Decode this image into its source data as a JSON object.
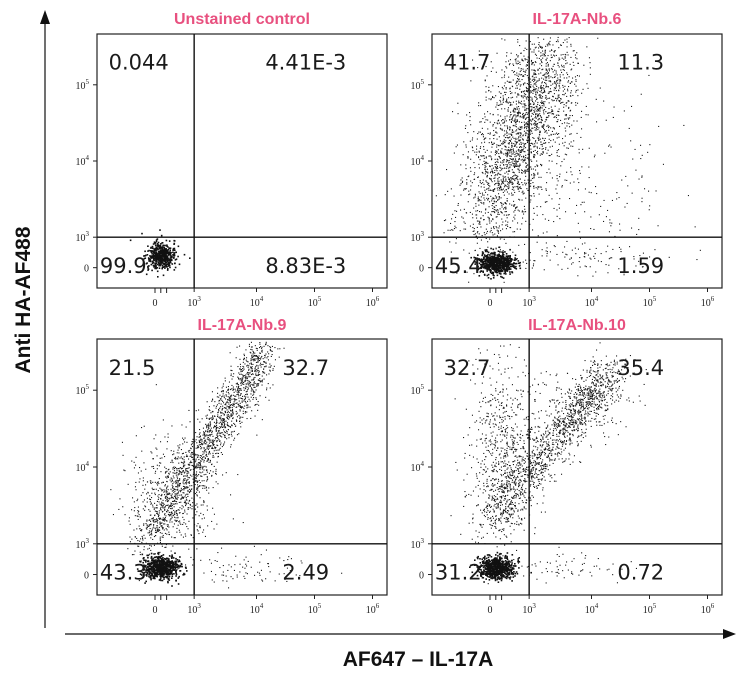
{
  "figure": {
    "xlabel": "AF647 – IL-17A",
    "ylabel": "Anti HA-AF488",
    "title_color": "#e8507f"
  },
  "chart_data": [
    {
      "type": "scatter",
      "title": "Unstained control",
      "xscale": "biexponential",
      "yscale": "biexponential",
      "x_ticks": [
        "0",
        "10^3",
        "10^4",
        "10^5",
        "10^6"
      ],
      "y_ticks": [
        "0",
        "10^3",
        "10^4",
        "10^5"
      ],
      "quadrant_percentages": {
        "upper_left": "0.044",
        "upper_right": "4.41E-3",
        "lower_left": "99.9",
        "lower_right": "8.83E-3"
      },
      "quadrant_gate": {
        "x": 500,
        "y": 1000
      }
    },
    {
      "type": "scatter",
      "title": "IL-17A-Nb.6",
      "xscale": "biexponential",
      "yscale": "biexponential",
      "x_ticks": [
        "0",
        "10^3",
        "10^4",
        "10^5",
        "10^6"
      ],
      "y_ticks": [
        "0",
        "10^3",
        "10^4",
        "10^5"
      ],
      "quadrant_percentages": {
        "upper_left": "41.7",
        "upper_right": "11.3",
        "lower_left": "45.4",
        "lower_right": "1.59"
      },
      "quadrant_gate": {
        "x": 500,
        "y": 1000
      }
    },
    {
      "type": "scatter",
      "title": "IL-17A-Nb.9",
      "xscale": "biexponential",
      "yscale": "biexponential",
      "x_ticks": [
        "0",
        "10^3",
        "10^4",
        "10^5",
        "10^6"
      ],
      "y_ticks": [
        "0",
        "10^3",
        "10^4",
        "10^5"
      ],
      "quadrant_percentages": {
        "upper_left": "21.5",
        "upper_right": "32.7",
        "lower_left": "43.3",
        "lower_right": "2.49"
      },
      "quadrant_gate": {
        "x": 500,
        "y": 1000
      }
    },
    {
      "type": "scatter",
      "title": "IL-17A-Nb.10",
      "xscale": "biexponential",
      "yscale": "biexponential",
      "x_ticks": [
        "0",
        "10^3",
        "10^4",
        "10^5",
        "10^6"
      ],
      "y_ticks": [
        "0",
        "10^3",
        "10^4",
        "10^5"
      ],
      "quadrant_percentages": {
        "upper_left": "32.7",
        "upper_right": "35.4",
        "lower_left": "31.2",
        "lower_right": "0.72"
      },
      "quadrant_gate": {
        "x": 500,
        "y": 1000
      }
    }
  ]
}
